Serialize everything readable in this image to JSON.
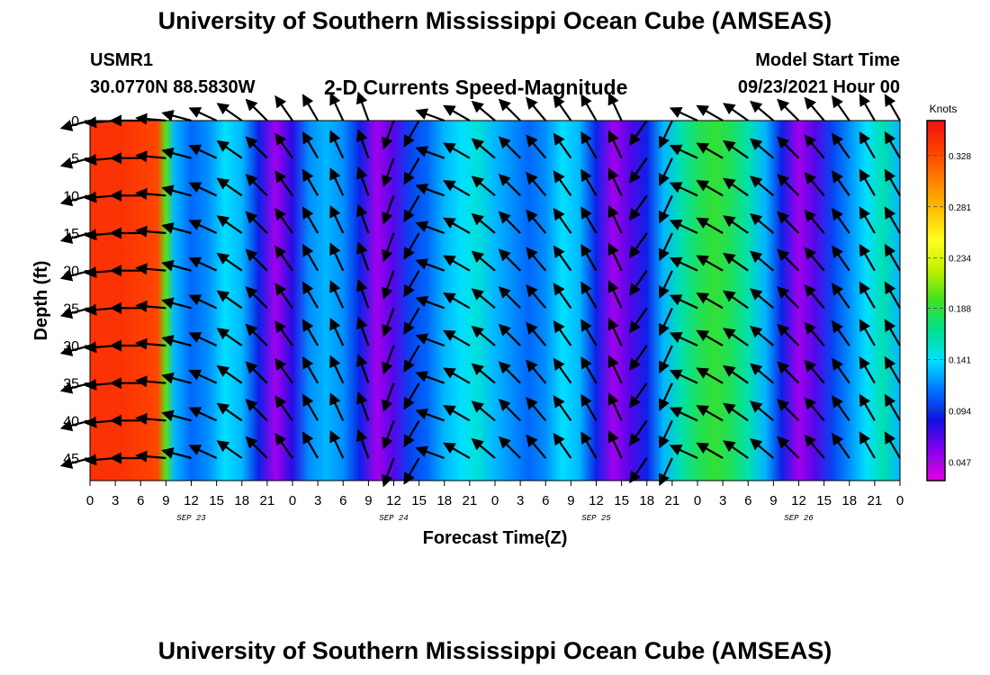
{
  "header": {
    "title": "University of Southern Mississippi Ocean Cube (AMSEAS)",
    "station": "USMR1",
    "coords": "30.0770N  88.5830W",
    "subtitle": "2-D Currents Speed-Magnitude",
    "model_start_label": "Model Start Time",
    "model_start_value": "09/23/2021 Hour 00"
  },
  "footer": {
    "title": "University of Southern Mississippi Ocean Cube (AMSEAS)"
  },
  "colors": {
    "ramp": [
      "#e000e0",
      "#8a00f0",
      "#1010e0",
      "#0070ff",
      "#00e0ff",
      "#00e090",
      "#40e020",
      "#c0f000",
      "#ffff20",
      "#ffc000",
      "#ff8000",
      "#ff4000",
      "#f01010"
    ]
  },
  "chart_data": {
    "type": "heatmap",
    "title": "2-D Currents Speed-Magnitude",
    "xlabel": "Forecast Time(Z)",
    "ylabel": "Depth (ft)",
    "ylim": [
      0,
      48
    ],
    "xlim": [
      0,
      96
    ],
    "y_ticks": [
      0,
      5,
      10,
      15,
      20,
      25,
      30,
      35,
      40,
      45
    ],
    "x_tick_values": [
      0,
      3,
      6,
      9,
      12,
      15,
      18,
      21,
      24,
      27,
      30,
      33,
      36,
      39,
      42,
      45,
      48,
      51,
      54,
      57,
      60,
      63,
      66,
      69,
      72,
      75,
      78,
      81,
      84,
      87,
      90,
      93,
      96
    ],
    "x_tick_labels": [
      "0",
      "3",
      "6",
      "9",
      "12",
      "15",
      "18",
      "21",
      "0",
      "3",
      "6",
      "9",
      "12",
      "15",
      "18",
      "21",
      "0",
      "3",
      "6",
      "9",
      "12",
      "15",
      "18",
      "21",
      "0",
      "3",
      "6",
      "9",
      "12",
      "15",
      "18",
      "21",
      "0"
    ],
    "day_labels": [
      {
        "hour": 12,
        "label": "SEP 23"
      },
      {
        "hour": 36,
        "label": "SEP 24"
      },
      {
        "hour": 60,
        "label": "SEP 25"
      },
      {
        "hour": 84,
        "label": "SEP 26"
      }
    ],
    "colorbar": {
      "unit": "Knots",
      "min": 0.03,
      "max": 0.36,
      "ticks": [
        "0.328",
        "0.281",
        "0.234",
        "0.188",
        "0.141",
        "0.094",
        "0.047"
      ]
    },
    "speed_profile_hours": [
      0,
      4,
      8,
      9,
      10,
      12,
      14,
      16,
      18,
      20,
      22,
      24,
      26,
      28,
      30,
      32,
      34,
      36,
      38,
      40,
      42,
      44,
      46,
      48,
      50,
      52,
      54,
      56,
      58,
      60,
      62,
      64,
      66,
      68,
      70,
      72,
      74,
      76,
      78,
      80,
      82,
      84,
      86,
      88,
      90,
      92,
      94,
      96
    ],
    "speed_profile_knots": [
      0.34,
      0.34,
      0.33,
      0.2,
      0.13,
      0.11,
      0.12,
      0.14,
      0.13,
      0.09,
      0.05,
      0.08,
      0.12,
      0.13,
      0.12,
      0.09,
      0.05,
      0.07,
      0.1,
      0.11,
      0.13,
      0.14,
      0.15,
      0.13,
      0.12,
      0.11,
      0.12,
      0.14,
      0.13,
      0.09,
      0.05,
      0.07,
      0.09,
      0.13,
      0.16,
      0.18,
      0.19,
      0.18,
      0.16,
      0.13,
      0.09,
      0.05,
      0.07,
      0.1,
      0.12,
      0.14,
      0.16,
      0.13
    ],
    "arrow_hours": [
      0,
      3,
      6,
      9,
      12,
      15,
      18,
      21,
      24,
      27,
      30,
      33,
      36,
      39,
      42,
      45,
      48,
      51,
      54,
      57,
      60,
      63,
      66,
      69,
      72,
      75,
      78,
      81,
      84,
      87,
      90,
      93,
      96
    ],
    "arrow_depths": [
      0,
      5,
      10,
      15,
      20,
      25,
      30,
      35,
      40,
      45
    ],
    "arrow_bearings_deg": [
      255,
      265,
      270,
      275,
      285,
      295,
      305,
      315,
      325,
      330,
      335,
      340,
      200,
      210,
      290,
      300,
      310,
      315,
      320,
      325,
      330,
      335,
      215,
      205,
      295,
      300,
      305,
      310,
      315,
      320,
      325,
      330,
      330
    ]
  }
}
